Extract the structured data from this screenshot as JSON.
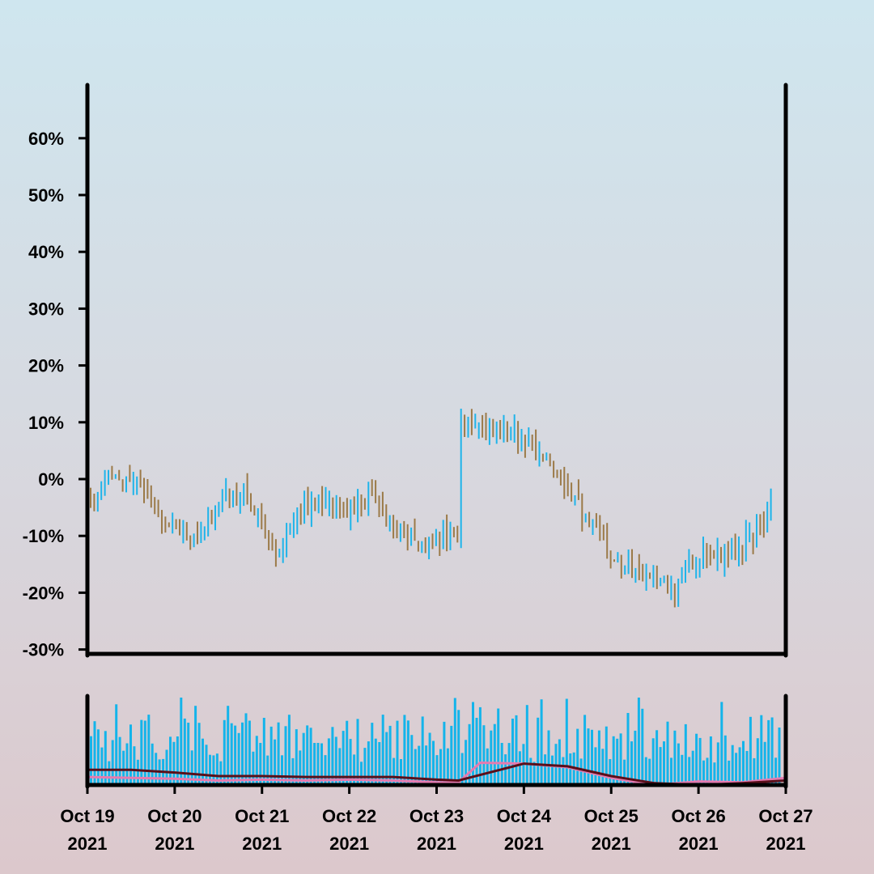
{
  "chart_data": [
    {
      "type": "ohlc",
      "ylabel_format": "percent",
      "ylim": [
        -30,
        70
      ],
      "yticks": [
        -30,
        -20,
        -10,
        0,
        10,
        20,
        30,
        40,
        50,
        60
      ],
      "ytick_labels": [
        "-30%",
        "-20%",
        "-10%",
        "0%",
        "10%",
        "20%",
        "30%",
        "40%",
        "50%",
        "60%"
      ],
      "x_range": [
        "2021-10-19",
        "2021-10-27"
      ],
      "xtick_labels": [
        {
          "line1": "Oct 19",
          "line2": "2021"
        },
        {
          "line1": "Oct 20",
          "line2": "2021"
        },
        {
          "line1": "Oct 21",
          "line2": "2021"
        },
        {
          "line1": "Oct 22",
          "line2": "2021"
        },
        {
          "line1": "Oct 23",
          "line2": "2021"
        },
        {
          "line1": "Oct 24",
          "line2": "2021"
        },
        {
          "line1": "Oct 25",
          "line2": "2021"
        },
        {
          "line1": "Oct 26",
          "line2": "2021"
        },
        {
          "line1": "Oct 27",
          "line2": "2021"
        }
      ],
      "trend_points": [
        [
          "2021-10-19T00:00",
          -3
        ],
        [
          "2021-10-19T06:00",
          1
        ],
        [
          "2021-10-19T12:00",
          1
        ],
        [
          "2021-10-19T18:00",
          -5
        ],
        [
          "2021-10-20T00:00",
          -8
        ],
        [
          "2021-10-20T04:00",
          -11
        ],
        [
          "2021-10-20T08:00",
          -9
        ],
        [
          "2021-10-20T14:00",
          -3
        ],
        [
          "2021-10-20T20:00",
          -3
        ],
        [
          "2021-10-21T00:00",
          -8
        ],
        [
          "2021-10-21T03:00",
          -13
        ],
        [
          "2021-10-21T06:00",
          -11
        ],
        [
          "2021-10-21T10:00",
          -5
        ],
        [
          "2021-10-21T16:00",
          -4
        ],
        [
          "2021-10-21T22:00",
          -6
        ],
        [
          "2021-10-22T04:00",
          -5
        ],
        [
          "2021-10-22T06:00",
          -1
        ],
        [
          "2021-10-22T10:00",
          -7
        ],
        [
          "2021-10-22T16:00",
          -10
        ],
        [
          "2021-10-22T22:00",
          -11
        ],
        [
          "2021-10-23T04:00",
          -10
        ],
        [
          "2021-10-23T07:00",
          -11
        ],
        [
          "2021-10-23T08:00",
          10
        ],
        [
          "2021-10-23T14:00",
          8
        ],
        [
          "2021-10-23T20:00",
          9
        ],
        [
          "2021-10-24T02:00",
          7
        ],
        [
          "2021-10-24T08:00",
          3
        ],
        [
          "2021-10-24T14:00",
          -1
        ],
        [
          "2021-10-24T20:00",
          -8
        ],
        [
          "2021-10-25T02:00",
          -13
        ],
        [
          "2021-10-25T08:00",
          -16
        ],
        [
          "2021-10-25T14:00",
          -17
        ],
        [
          "2021-10-25T20:00",
          -19
        ],
        [
          "2021-10-26T00:00",
          -14
        ],
        [
          "2021-10-26T06:00",
          -13
        ],
        [
          "2021-10-26T10:00",
          -14
        ],
        [
          "2021-10-26T14:00",
          -12
        ],
        [
          "2021-10-26T20:00",
          -9
        ],
        [
          "2021-10-27T00:00",
          -4
        ]
      ],
      "colors": {
        "up": "#1eb4ea",
        "down": "#9b7a48"
      }
    },
    {
      "type": "bar",
      "series_name": "volume",
      "colors": {
        "bars": "#14b4ea",
        "line_a": "#e57ab0",
        "line_b": "#5a0f1a"
      },
      "line_a_points": [
        [
          "2021-10-19T00:00",
          0.09
        ],
        [
          "2021-10-20T00:00",
          0.07
        ],
        [
          "2021-10-20T12:00",
          0.05
        ],
        [
          "2021-10-21T00:00",
          0.06
        ],
        [
          "2021-10-21T12:00",
          0.05
        ],
        [
          "2021-10-22T00:00",
          0.06
        ],
        [
          "2021-10-22T12:00",
          0.05
        ],
        [
          "2021-10-23T00:00",
          0.03
        ],
        [
          "2021-10-23T06:00",
          0.03
        ],
        [
          "2021-10-23T12:00",
          0.25
        ],
        [
          "2021-10-24T00:00",
          0.24
        ],
        [
          "2021-10-24T12:00",
          0.2
        ],
        [
          "2021-10-25T00:00",
          0.08
        ],
        [
          "2021-10-25T12:00",
          0.0
        ],
        [
          "2021-10-26T00:00",
          0.04
        ],
        [
          "2021-10-26T12:00",
          0.03
        ],
        [
          "2021-10-27T00:00",
          0.08
        ]
      ],
      "line_b_points": [
        [
          "2021-10-19T00:00",
          0.17
        ],
        [
          "2021-10-19T12:00",
          0.17
        ],
        [
          "2021-10-20T00:00",
          0.14
        ],
        [
          "2021-10-20T12:00",
          0.1
        ],
        [
          "2021-10-21T00:00",
          0.1
        ],
        [
          "2021-10-21T12:00",
          0.09
        ],
        [
          "2021-10-22T00:00",
          0.09
        ],
        [
          "2021-10-22T12:00",
          0.09
        ],
        [
          "2021-10-23T00:00",
          0.06
        ],
        [
          "2021-10-23T06:00",
          0.05
        ],
        [
          "2021-10-24T00:00",
          0.24
        ],
        [
          "2021-10-24T12:00",
          0.21
        ],
        [
          "2021-10-25T00:00",
          0.1
        ],
        [
          "2021-10-25T12:00",
          0.02
        ],
        [
          "2021-10-26T00:00",
          0.0
        ],
        [
          "2021-10-26T12:00",
          0.02
        ],
        [
          "2021-10-27T00:00",
          0.05
        ]
      ]
    }
  ]
}
